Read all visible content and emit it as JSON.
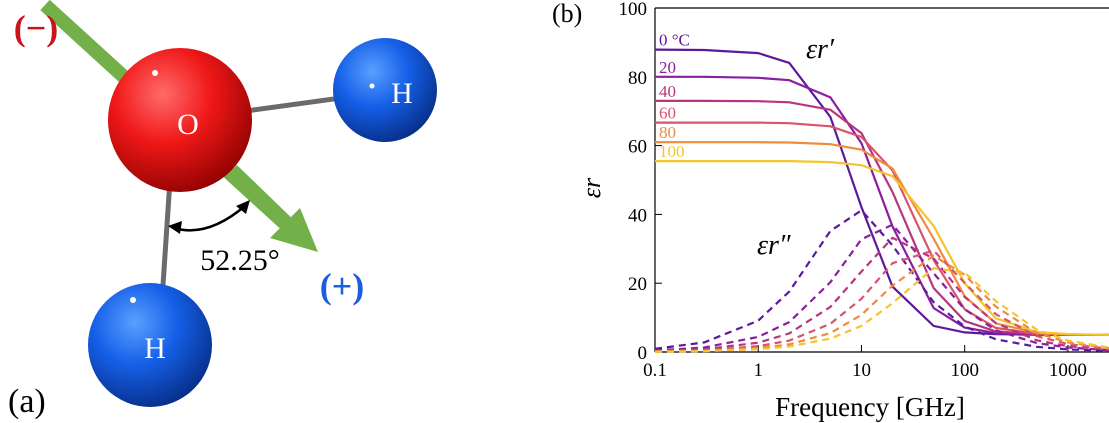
{
  "panel_a": {
    "label": "(a)",
    "negative": "(−)",
    "positive": "(+)",
    "oxygen": "O",
    "hydrogen_top": "H",
    "hydrogen_bottom": "H",
    "angle": "52.25°"
  },
  "chart_data": {
    "type": "line",
    "panel_label": "(b)",
    "xlabel": "Frequency [GHz]",
    "ylabel": "εr",
    "annotations": [
      "εr′",
      "εr″"
    ],
    "x_scale": "log",
    "x": [
      0.1,
      0.3,
      1,
      2,
      5,
      10,
      20,
      50,
      100,
      200,
      500,
      1000,
      2500
    ],
    "xlim": [
      0.1,
      2500
    ],
    "xticks": [
      0.1,
      1,
      10,
      100,
      1000
    ],
    "ylim": [
      0,
      100
    ],
    "yticks": [
      0,
      20,
      40,
      60,
      80,
      100
    ],
    "series": [
      {
        "name": "0 °C",
        "color": "#5b1a9c",
        "dash": false,
        "values": [
          87.9,
          87.8,
          86.9,
          84.0,
          68.3,
          42.1,
          19.0,
          7.6,
          5.7,
          5.2,
          5.0,
          5.0,
          5.0
        ]
      },
      {
        "name": "20",
        "color": "#8a1ea0",
        "dash": false,
        "values": [
          80.0,
          80.0,
          79.7,
          79.0,
          74.0,
          60.7,
          36.5,
          12.8,
          7.1,
          5.5,
          5.1,
          5.0,
          5.0
        ]
      },
      {
        "name": "40",
        "color": "#b5367f",
        "dash": false,
        "values": [
          73.0,
          73.0,
          72.9,
          72.6,
          70.4,
          63.6,
          46.5,
          18.6,
          9.0,
          6.0,
          5.2,
          5.0,
          5.0
        ]
      },
      {
        "name": "60",
        "color": "#d9546a",
        "dash": false,
        "values": [
          66.7,
          66.7,
          66.7,
          66.5,
          65.6,
          62.5,
          52.8,
          26.8,
          12.4,
          7.0,
          5.3,
          5.1,
          5.0
        ]
      },
      {
        "name": "80",
        "color": "#ef8a3f",
        "dash": false,
        "values": [
          61.0,
          61.0,
          61.0,
          60.9,
          60.4,
          58.8,
          53.3,
          33.0,
          16.2,
          8.3,
          5.6,
          5.1,
          5.0
        ]
      },
      {
        "name": "100",
        "color": "#f6c42b",
        "dash": false,
        "values": [
          55.5,
          55.5,
          55.5,
          55.5,
          55.2,
          54.3,
          51.1,
          36.7,
          20.0,
          9.8,
          5.8,
          5.2,
          5.0
        ]
      },
      {
        "color": "#5b1a9c",
        "dash": true,
        "values": [
          0.92,
          2.8,
          9.1,
          17.6,
          35.2,
          41.2,
          31.0,
          14.5,
          7.4,
          3.7,
          1.5,
          0.75,
          0.3
        ]
      },
      {
        "color": "#8a1ea0",
        "dash": true,
        "values": [
          0.44,
          1.3,
          4.4,
          8.7,
          20.3,
          32.8,
          37.0,
          22.9,
          12.4,
          6.3,
          2.6,
          1.3,
          0.5
        ]
      },
      {
        "color": "#b5367f",
        "dash": true,
        "values": [
          0.27,
          0.8,
          2.7,
          5.4,
          13.1,
          23.4,
          33.2,
          27.2,
          16.0,
          8.4,
          3.4,
          1.7,
          0.7
        ]
      },
      {
        "color": "#d9546a",
        "dash": true,
        "values": [
          0.17,
          0.5,
          1.7,
          3.3,
          8.2,
          15.5,
          25.8,
          29.5,
          20.1,
          11.0,
          4.6,
          2.3,
          0.9
        ]
      },
      {
        "color": "#ef8a3f",
        "dash": true,
        "values": [
          0.11,
          0.34,
          1.1,
          2.2,
          5.5,
          10.8,
          19.3,
          28.0,
          22.4,
          13.2,
          5.5,
          2.8,
          1.1
        ]
      },
      {
        "color": "#f6c42b",
        "dash": true,
        "values": [
          0.08,
          0.23,
          0.8,
          1.6,
          3.9,
          7.6,
          14.2,
          24.4,
          23.1,
          14.8,
          6.5,
          3.3,
          1.3
        ]
      }
    ]
  }
}
